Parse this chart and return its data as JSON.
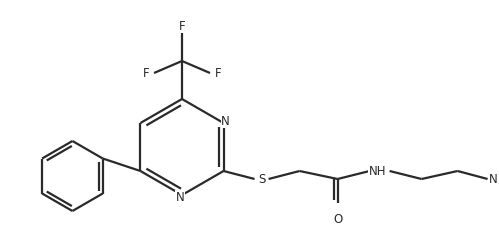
{
  "background_color": "#ffffff",
  "line_color": "#2a2a2a",
  "line_width": 1.6,
  "font_size": 8.5,
  "figsize": [
    4.99,
    2.32
  ],
  "dpi": 100,
  "xlim": [
    0,
    499
  ],
  "ylim": [
    0,
    232
  ]
}
